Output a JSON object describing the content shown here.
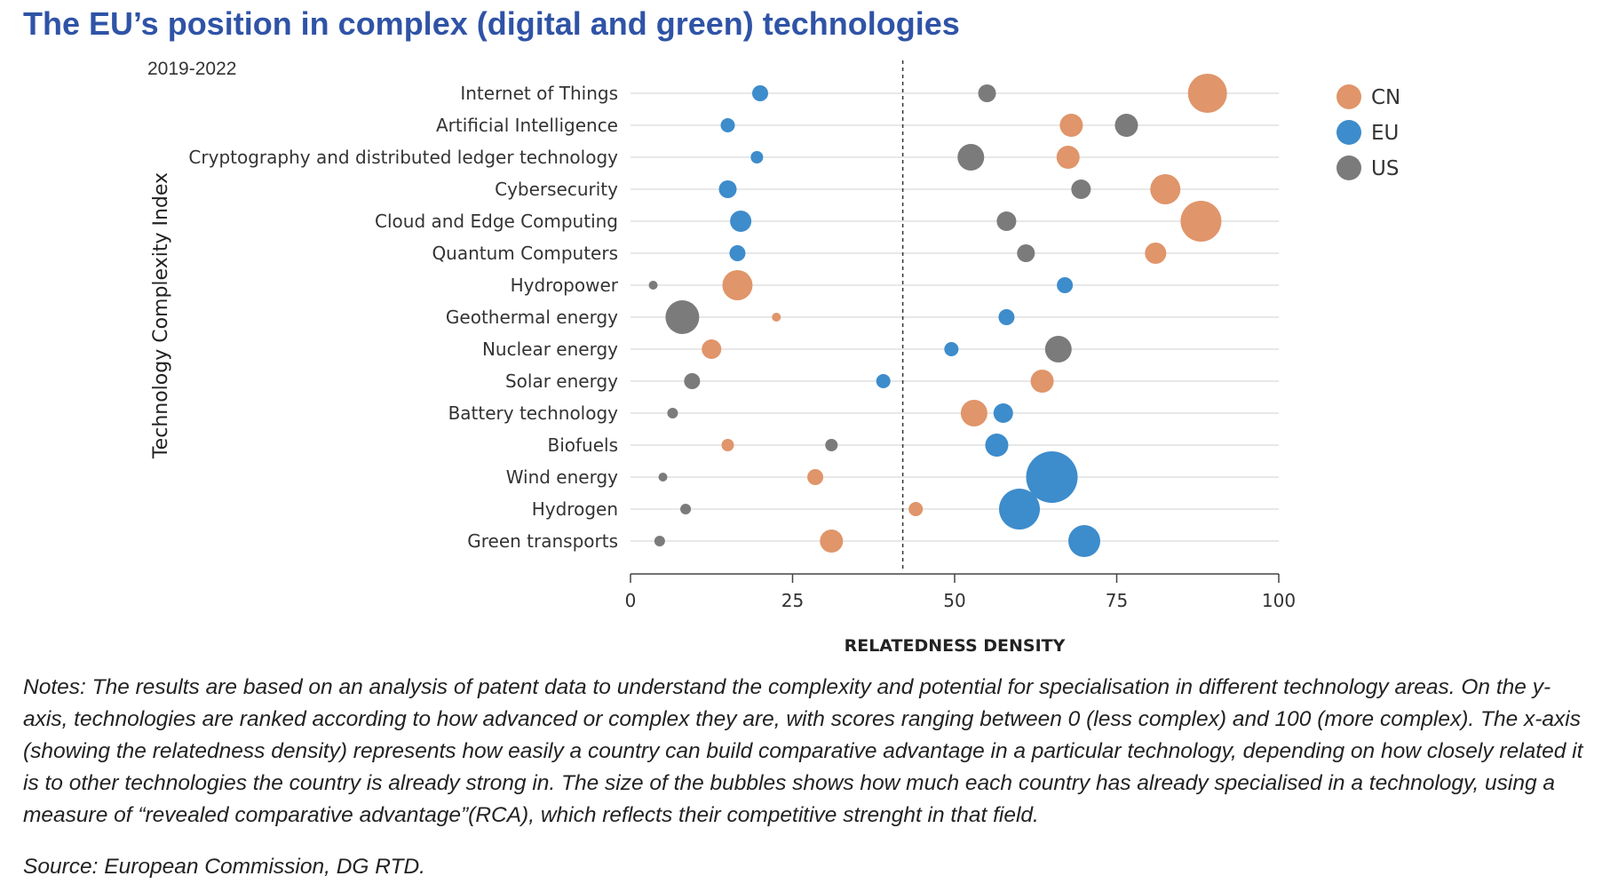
{
  "title": "The EU’s position in complex (digital and green) technologies",
  "period": "2019-2022",
  "notes": "Notes: The results are based on an analysis of patent data to understand the complexity and potential for specialisation in different technology areas. On the y-axis, technologies are ranked according to how advanced or complex they are, with scores ranging between 0 (less complex) and 100 (more complex). The x-axis (showing the relatedness density) represents how easily a country can build comparative advantage in a particular technology, depending on how closely related it is to other technologies the country is already strong in. The size of the bubbles shows how much each country has already specialised in a technology, using a measure of “revealed comparative advantage”(RCA), which reflects their competitive strenght in that field.",
  "source": "Source: European Commission, DG RTD.",
  "chart_data": {
    "type": "scatter",
    "title": "The EU’s position in complex (digital and green) technologies",
    "xlabel": "RELATEDNESS DENSITY",
    "ylabel": "Technology Complexity Index",
    "xlim": [
      0,
      100
    ],
    "xticks": [
      0,
      25,
      50,
      75,
      100
    ],
    "reference_line_x": 42,
    "legend_position": "right",
    "grid": "horizontal",
    "categories": [
      "Internet of Things",
      "Artificial Intelligence",
      "Cryptography and distributed ledger technology",
      "Cybersecurity",
      "Cloud and Edge Computing",
      "Quantum Computers",
      "Hydropower",
      "Geothermal energy",
      "Nuclear energy",
      "Solar energy",
      "Battery technology",
      "Biofuels",
      "Wind energy",
      "Hydrogen",
      "Green transports"
    ],
    "series": [
      {
        "name": "CN",
        "color": "#e0956a",
        "x": [
          89,
          68,
          67.5,
          82.5,
          88,
          81,
          16.5,
          22.5,
          12.5,
          63.5,
          53,
          15,
          28.5,
          44,
          31
        ],
        "size": [
          22,
          13,
          13,
          17,
          23,
          12,
          17,
          5,
          11,
          13,
          15,
          7,
          9,
          8,
          13
        ]
      },
      {
        "name": "EU",
        "color": "#3d8ccc",
        "x": [
          20,
          15,
          19.5,
          15,
          17,
          16.5,
          67,
          58,
          49.5,
          39,
          57.5,
          56.5,
          65,
          60,
          70
        ],
        "size": [
          9,
          8,
          7,
          10,
          12,
          9,
          9,
          9,
          8,
          8,
          11,
          13,
          29,
          23,
          18
        ]
      },
      {
        "name": "US",
        "color": "#7b7b7b",
        "x": [
          55,
          76.5,
          52.5,
          69.5,
          58,
          61,
          3.5,
          8,
          66,
          9.5,
          6.5,
          31,
          5,
          8.5,
          4.5
        ],
        "size": [
          10,
          13,
          15,
          11,
          11,
          10,
          5,
          19,
          15,
          9,
          6,
          7,
          5,
          6,
          6
        ]
      }
    ]
  }
}
